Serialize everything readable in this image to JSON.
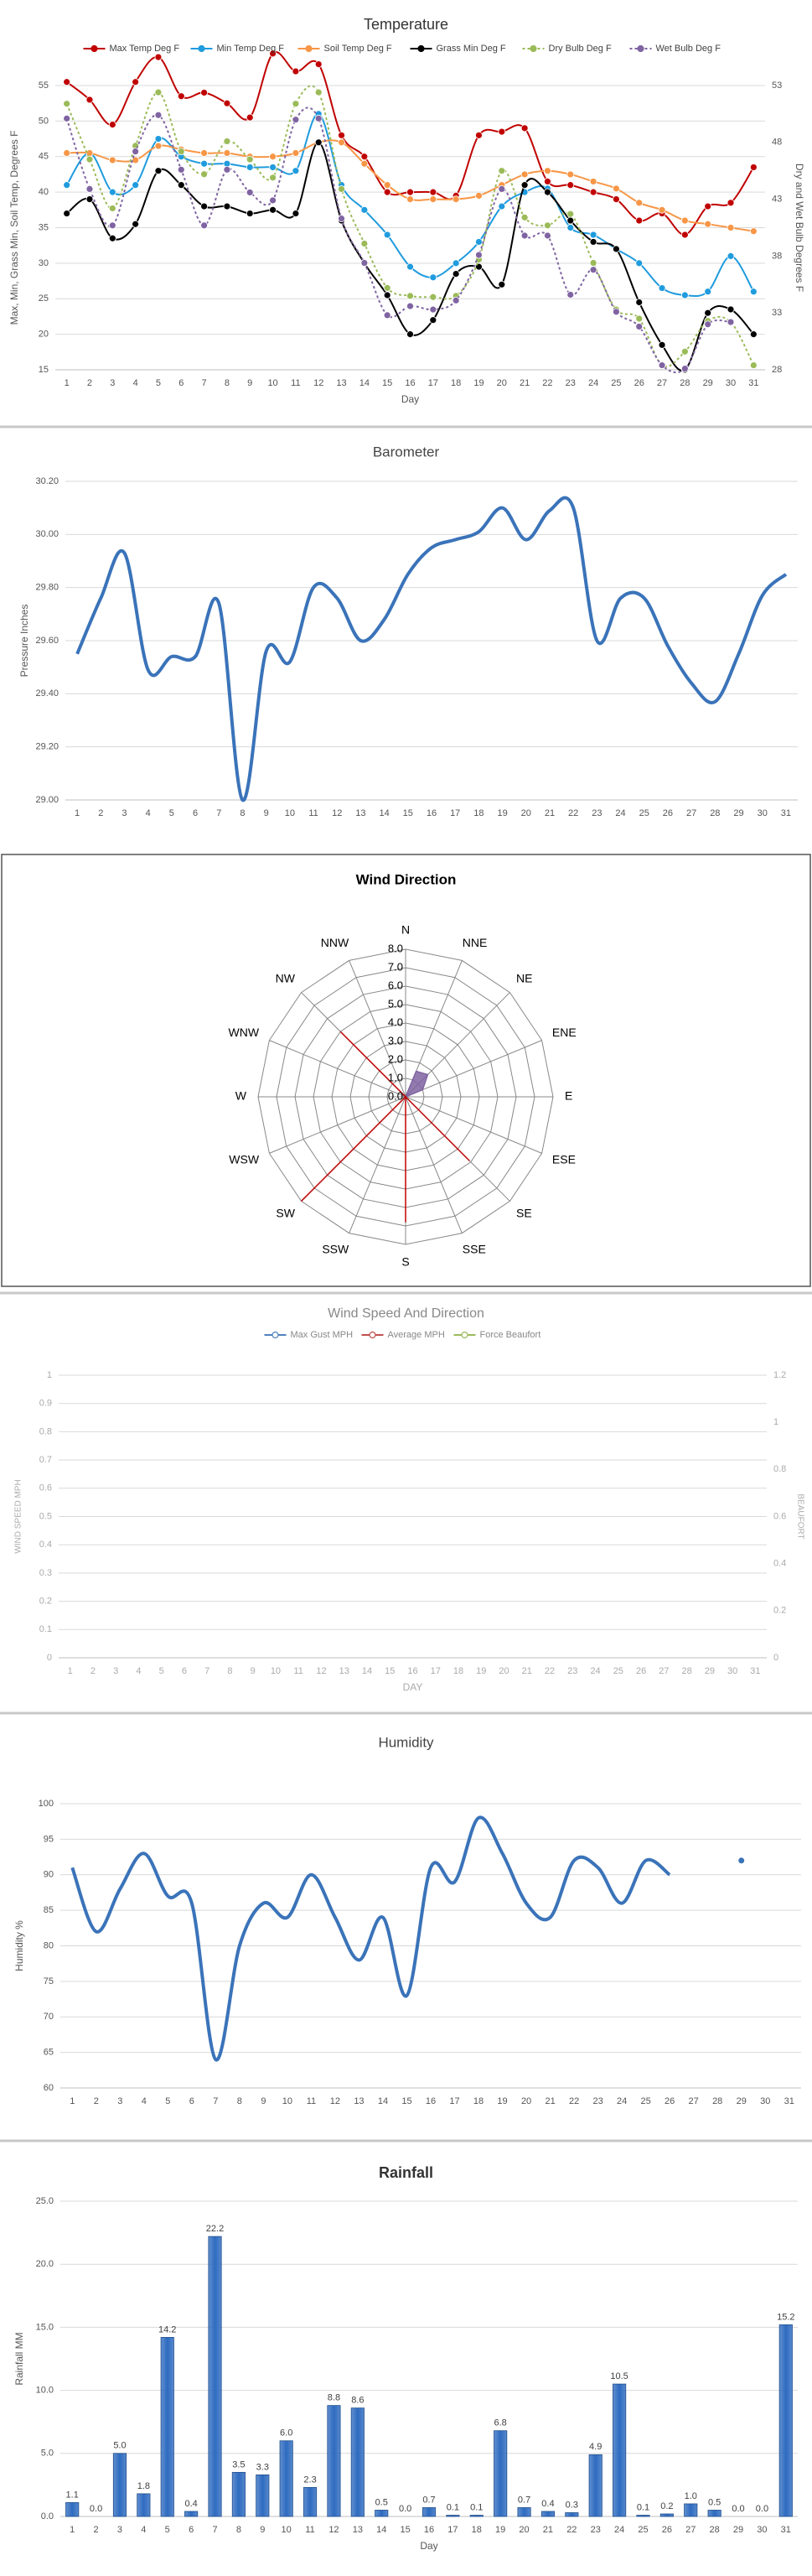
{
  "chart_data": [
    {
      "type": "line",
      "title": "Temperature",
      "smooth": true,
      "markers": true,
      "legend": "top",
      "grid": true,
      "ylabel": "Max, Min, Grass Min, Soil Temp, Degrees F",
      "y2label": "Dry and Wet Bulb Degrees F",
      "xlabel": "Day",
      "categories": [
        "1",
        "2",
        "3",
        "4",
        "5",
        "6",
        "7",
        "8",
        "9",
        "10",
        "11",
        "12",
        "13",
        "14",
        "15",
        "16",
        "17",
        "18",
        "19",
        "20",
        "21",
        "22",
        "23",
        "24",
        "25",
        "26",
        "27",
        "28",
        "29",
        "30",
        "31"
      ],
      "ylim": [
        15,
        55
      ],
      "yticks": [
        15,
        20,
        25,
        30,
        35,
        40,
        45,
        50,
        55
      ],
      "y2lim": [
        28,
        53
      ],
      "y2ticks": [
        28,
        33,
        38,
        43,
        48,
        53
      ],
      "series": [
        {
          "name": "Max Temp Deg F",
          "color": "#c00000",
          "values": [
            55.5,
            53,
            49.5,
            55.5,
            59,
            53.5,
            54,
            52.5,
            50.5,
            59.5,
            57,
            58,
            48,
            45,
            40,
            40,
            40,
            39.5,
            48,
            48.5,
            49,
            41.5,
            41,
            40,
            39,
            36,
            37,
            34,
            38,
            38.5,
            43.5
          ]
        },
        {
          "name": "Min Temp Deg F",
          "color": "#1f9bde",
          "values": [
            41,
            45.5,
            40,
            41,
            47.5,
            45,
            44,
            44,
            43.5,
            43.5,
            43,
            51,
            41,
            37.5,
            34,
            29.5,
            28,
            30,
            33,
            38,
            40,
            40.5,
            35,
            34,
            32,
            30,
            26.5,
            25.5,
            26,
            31,
            26
          ]
        },
        {
          "name": "Soil Temp Deg F",
          "color": "#f79646",
          "values": [
            45.5,
            45.5,
            44.5,
            44.5,
            46.5,
            46,
            45.5,
            45.5,
            45,
            45,
            45.5,
            47,
            47,
            44,
            41,
            39,
            39,
            39,
            39.5,
            41,
            42.5,
            43,
            42.5,
            41.5,
            40.5,
            38.5,
            37.5,
            36,
            35.5,
            35,
            34.5
          ]
        },
        {
          "name": "Grass Min Deg F",
          "color": "#000000",
          "values": [
            37,
            39,
            33.5,
            35.5,
            43,
            41,
            38,
            38,
            37,
            37.5,
            37,
            47,
            36,
            30,
            25.5,
            20,
            22,
            28.5,
            29.5,
            27,
            41,
            40,
            36,
            33,
            32,
            24.5,
            18.5,
            15,
            23,
            23.5,
            20
          ]
        },
        {
          "name": "Dry Bulb Deg F",
          "color": "#9bbb59",
          "axis": "y2",
          "dash": "dot",
          "values": [
            51.4,
            46.5,
            42.2,
            47.7,
            52.4,
            47.2,
            45.2,
            48.1,
            46.5,
            44.9,
            51.4,
            52.4,
            43.9,
            39.1,
            35.2,
            34.5,
            34.4,
            34.5,
            37.7,
            45.5,
            41.4,
            40.7,
            41.7,
            37.4,
            33.3,
            32.5,
            28.4,
            29.6,
            32.3,
            32.2,
            28.4
          ]
        },
        {
          "name": "Wet Bulb Deg F",
          "color": "#8064a2",
          "axis": "y2",
          "dash": "dot",
          "values": [
            50.1,
            43.9,
            40.7,
            47.2,
            50.4,
            45.6,
            40.7,
            45.6,
            43.6,
            42.9,
            50,
            50.1,
            41.3,
            37.4,
            32.8,
            33.6,
            33.3,
            34.1,
            38.1,
            43.9,
            39.8,
            39.8,
            34.6,
            36.8,
            33.1,
            31.8,
            28.4,
            28.1,
            32,
            32.2,
            null
          ]
        }
      ]
    },
    {
      "type": "line",
      "title": "Barometer",
      "smooth": true,
      "grid": true,
      "ylabel": "Pressure Inches",
      "categories": [
        "1",
        "2",
        "3",
        "4",
        "5",
        "6",
        "7",
        "8",
        "9",
        "10",
        "11",
        "12",
        "13",
        "14",
        "15",
        "16",
        "17",
        "18",
        "19",
        "20",
        "21",
        "22",
        "23",
        "24",
        "25",
        "26",
        "27",
        "28",
        "29",
        "30",
        "31"
      ],
      "ylim": [
        29.0,
        30.2
      ],
      "yticks": [
        {
          "value": 29.0,
          "label": "29.00"
        },
        {
          "value": 29.2,
          "label": "29.20"
        },
        {
          "value": 29.4,
          "label": "29.40"
        },
        {
          "value": 29.6,
          "label": "29.60"
        },
        {
          "value": 29.8,
          "label": "29.80"
        },
        {
          "value": 30.0,
          "label": "30.00"
        },
        {
          "value": 30.2,
          "label": "30.20"
        }
      ],
      "series": [
        {
          "color": "#3a73b9",
          "values": [
            29.55,
            29.76,
            29.93,
            29.49,
            29.54,
            29.54,
            29.74,
            29.0,
            29.56,
            29.52,
            29.8,
            29.76,
            29.6,
            29.68,
            29.85,
            29.95,
            29.98,
            30.01,
            30.1,
            29.98,
            30.09,
            30.1,
            29.6,
            29.76,
            29.76,
            29.58,
            29.44,
            29.37,
            29.55,
            29.77,
            29.85
          ]
        }
      ]
    },
    {
      "type": "radar",
      "title": "Wind Direction",
      "categories": [
        "N",
        "NNE",
        "NE",
        "ENE",
        "E",
        "ESE",
        "SE",
        "SSE",
        "S",
        "SSW",
        "SW",
        "WSW",
        "W",
        "WNW",
        "NW",
        "NNW"
      ],
      "rlim": [
        0,
        8
      ],
      "rticks": [
        {
          "value": 0,
          "label": "0.0"
        },
        {
          "value": 1,
          "label": "1.0"
        },
        {
          "value": 2,
          "label": "2.0"
        },
        {
          "value": 3,
          "label": "3.0"
        },
        {
          "value": 4,
          "label": "4.0"
        },
        {
          "value": 5,
          "label": "5.0"
        },
        {
          "value": 6,
          "label": "6.0"
        },
        {
          "value": 7,
          "label": "7.0"
        },
        {
          "value": 8,
          "label": "8.0"
        }
      ],
      "series": [
        {
          "color": "#8064a2",
          "fill": true,
          "values": [
            0,
            1.5,
            1.7,
            1,
            0,
            0,
            0,
            0,
            0,
            0,
            0,
            0,
            0,
            0,
            0,
            0
          ]
        },
        {
          "color": "#c00000",
          "values": [
            0,
            0,
            0,
            0,
            0,
            0,
            4.9,
            0,
            6.8,
            0,
            8,
            0,
            0,
            0,
            5,
            0
          ]
        }
      ]
    },
    {
      "type": "line",
      "title": "Wind Speed And Direction",
      "legend": "top",
      "grid": true,
      "muted": true,
      "ylabel": "WIND SPEED MPH",
      "y2label": "BEAUFORT",
      "xlabel": "DAY",
      "categories": [
        "1",
        "2",
        "3",
        "4",
        "5",
        "6",
        "7",
        "8",
        "9",
        "10",
        "11",
        "12",
        "13",
        "14",
        "15",
        "16",
        "17",
        "18",
        "19",
        "20",
        "21",
        "22",
        "23",
        "24",
        "25",
        "26",
        "27",
        "28",
        "29",
        "30",
        "31"
      ],
      "ylim": [
        0,
        1
      ],
      "yticks": [
        0,
        0.1,
        0.2,
        0.3,
        0.4,
        0.5,
        0.6,
        0.7,
        0.8,
        0.9,
        1
      ],
      "y2lim": [
        0,
        1.2
      ],
      "y2ticks": [
        0,
        0.2,
        0.4,
        0.6,
        0.8,
        1,
        1.2
      ],
      "series": [
        {
          "name": "Max Gust MPH",
          "color": "#4f81bd",
          "values": [
            null,
            null,
            null,
            null,
            null,
            null,
            null,
            null,
            null,
            null,
            null,
            null,
            null,
            null,
            null,
            null,
            null,
            null,
            null,
            null,
            null,
            null,
            null,
            null,
            null,
            null,
            null,
            null,
            null,
            null,
            null
          ]
        },
        {
          "name": "Average MPH",
          "color": "#c0504d",
          "values": [
            null,
            null,
            null,
            null,
            null,
            null,
            null,
            null,
            null,
            null,
            null,
            null,
            null,
            null,
            null,
            null,
            null,
            null,
            null,
            null,
            null,
            null,
            null,
            null,
            null,
            null,
            null,
            null,
            null,
            null,
            null
          ]
        },
        {
          "name": "Force Beaufort",
          "color": "#9bbb59",
          "axis": "y2",
          "values": [
            null,
            null,
            null,
            null,
            null,
            null,
            null,
            null,
            null,
            null,
            null,
            null,
            null,
            null,
            null,
            null,
            null,
            null,
            null,
            null,
            null,
            null,
            null,
            null,
            null,
            null,
            null,
            null,
            null,
            null,
            null
          ]
        }
      ]
    },
    {
      "type": "line",
      "title": "Humidity",
      "smooth": true,
      "grid": true,
      "ylabel": "Humidity %",
      "categories": [
        "1",
        "2",
        "3",
        "4",
        "5",
        "6",
        "7",
        "8",
        "9",
        "10",
        "11",
        "12",
        "13",
        "14",
        "15",
        "16",
        "17",
        "18",
        "19",
        "20",
        "21",
        "22",
        "23",
        "24",
        "25",
        "26",
        "27",
        "28",
        "29",
        "30",
        "31"
      ],
      "ylim": [
        60,
        100
      ],
      "yticks": [
        60,
        65,
        70,
        75,
        80,
        85,
        90,
        95,
        100
      ],
      "series": [
        {
          "color": "#3a73b9",
          "values": [
            91,
            82,
            88,
            93,
            87,
            86,
            64,
            80,
            86,
            84,
            90,
            84,
            78,
            84,
            73,
            91,
            89,
            98,
            93,
            86,
            84,
            92,
            91,
            86,
            92,
            90,
            null,
            null,
            92,
            null,
            null
          ]
        }
      ]
    },
    {
      "type": "bar",
      "title": "Rainfall",
      "grid": true,
      "ylabel": "Rainfall MM",
      "xlabel": "Day",
      "color": "#2e6bc0",
      "categories": [
        "1",
        "2",
        "3",
        "4",
        "5",
        "6",
        "7",
        "8",
        "9",
        "10",
        "11",
        "12",
        "13",
        "14",
        "15",
        "16",
        "17",
        "18",
        "19",
        "20",
        "21",
        "22",
        "23",
        "24",
        "25",
        "26",
        "27",
        "28",
        "29",
        "30",
        "31"
      ],
      "ylim": [
        0,
        25
      ],
      "yticks": [
        {
          "value": 0,
          "label": "0.0"
        },
        {
          "value": 5,
          "label": "5.0"
        },
        {
          "value": 10,
          "label": "10.0"
        },
        {
          "value": 15,
          "label": "15.0"
        },
        {
          "value": 20,
          "label": "20.0"
        },
        {
          "value": 25,
          "label": "25.0"
        }
      ],
      "values": [
        1.1,
        0,
        5,
        1.8,
        14.2,
        0.4,
        22.2,
        3.5,
        3.3,
        6,
        2.3,
        8.8,
        8.6,
        0.5,
        0,
        0.7,
        0.1,
        0.1,
        6.8,
        0.7,
        0.4,
        0.3,
        4.9,
        10.5,
        0.1,
        0.2,
        1,
        0.5,
        0,
        0,
        15.2
      ],
      "value_labels": [
        "1.1",
        "0.0",
        "5.0",
        "1.8",
        "14.2",
        "0.4",
        "22.2",
        "3.5",
        "3.3",
        "6.0",
        "2.3",
        "8.8",
        "8.6",
        "0.5",
        "0.0",
        "0.7",
        "0.1",
        "0.1",
        "6.8",
        "0.7",
        "0.4",
        "0.3",
        "4.9",
        "10.5",
        "0.1",
        "0.2",
        "1.0",
        "0.5",
        "0.0",
        "0.0",
        "15.2"
      ]
    }
  ]
}
